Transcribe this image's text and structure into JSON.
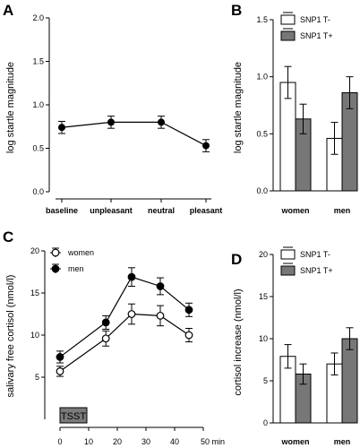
{
  "panels": {
    "A": "A",
    "B": "B",
    "C": "C",
    "D": "D"
  },
  "chart_data": [
    {
      "panel": "A",
      "type": "line",
      "categories": [
        "baseline",
        "unpleasant",
        "neutral",
        "pleasant"
      ],
      "values": [
        0.74,
        0.8,
        0.8,
        0.53
      ],
      "errors": [
        0.07,
        0.07,
        0.07,
        0.07
      ],
      "ylabel": "log startle magnitude",
      "ylim": [
        0.0,
        2.0
      ],
      "yticks": [
        "0.0",
        "0.5",
        "1.0",
        "1.5",
        "2.0"
      ],
      "grid": false
    },
    {
      "panel": "B",
      "type": "bar",
      "categories": [
        "women",
        "men"
      ],
      "series": [
        {
          "name": "SNP1 T-",
          "color": "#ffffff",
          "values": [
            0.95,
            0.46
          ],
          "errors": [
            0.14,
            0.14
          ]
        },
        {
          "name": "SNP1 T+",
          "color": "#777777",
          "values": [
            0.63,
            0.86
          ],
          "errors": [
            0.13,
            0.14
          ]
        }
      ],
      "ylabel": "log startle magnitude",
      "ylim": [
        0.0,
        1.5
      ],
      "yticks": [
        "0.0",
        "0.5",
        "1.0",
        "1.5"
      ],
      "legend": "top-left",
      "grid": false
    },
    {
      "panel": "C",
      "type": "line",
      "x": [
        0,
        16,
        25,
        35,
        45
      ],
      "xticks": [
        "0",
        "10",
        "20",
        "30",
        "40",
        "50 min"
      ],
      "series": [
        {
          "name": "women",
          "marker": "open",
          "values": [
            5.7,
            9.6,
            12.5,
            12.3,
            10.0
          ],
          "errors": [
            0.6,
            0.9,
            1.2,
            1.2,
            0.8
          ]
        },
        {
          "name": "men",
          "marker": "filled",
          "values": [
            7.4,
            11.5,
            16.9,
            15.8,
            13.0
          ],
          "errors": [
            0.7,
            0.8,
            1.1,
            1.0,
            0.8
          ]
        }
      ],
      "ylabel": "salivary free cortisol (nmol/l)",
      "ylim": [
        0,
        20
      ],
      "yticks": [
        "5",
        "10",
        "15",
        "20"
      ],
      "xlim": [
        0,
        50
      ],
      "annotation": "TSST",
      "annotation_range": [
        0,
        10
      ],
      "legend": "top-left",
      "grid": false
    },
    {
      "panel": "D",
      "type": "bar",
      "categories": [
        "women",
        "men"
      ],
      "series": [
        {
          "name": "SNP1 T-",
          "color": "#ffffff",
          "values": [
            7.9,
            7.0
          ],
          "errors": [
            1.4,
            1.3
          ]
        },
        {
          "name": "SNP1 T+",
          "color": "#777777",
          "values": [
            5.8,
            10.0
          ],
          "errors": [
            1.2,
            1.3
          ]
        }
      ],
      "ylabel": "cortisol increase (nmol/l)",
      "ylim": [
        0,
        20
      ],
      "yticks": [
        "0",
        "5",
        "10",
        "15",
        "20"
      ],
      "legend": "top-left",
      "grid": false
    }
  ]
}
